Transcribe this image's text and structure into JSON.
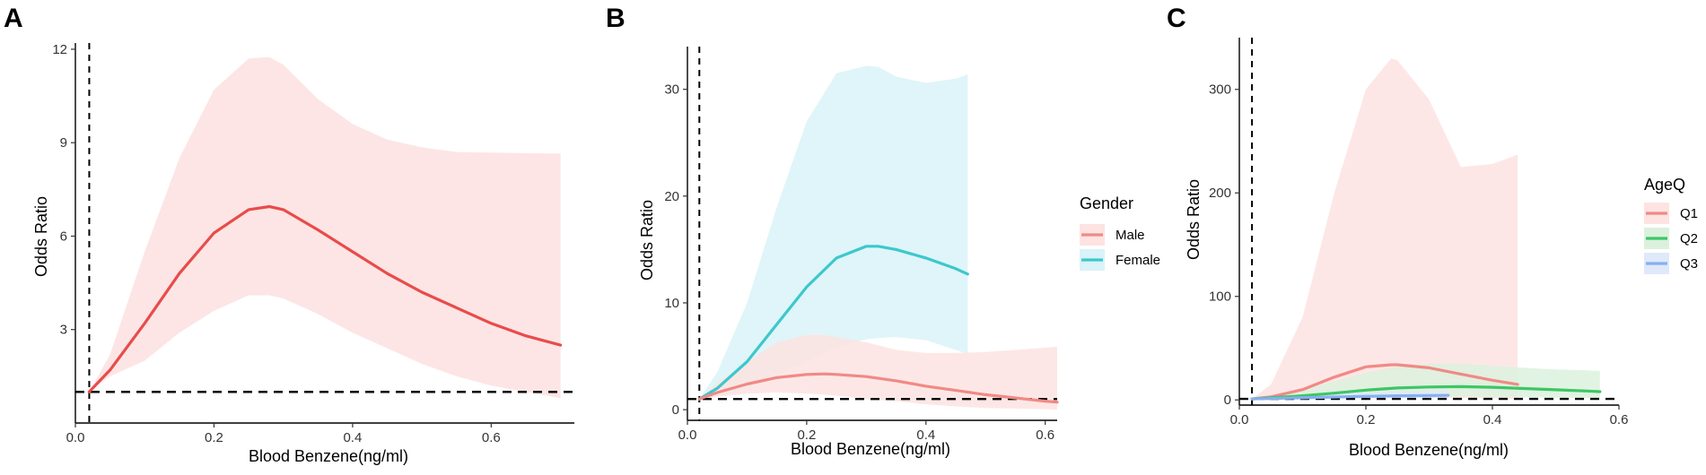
{
  "chart_data": [
    {
      "panel": "A",
      "type": "line",
      "xlabel": "Blood Benzene(ng/ml)",
      "ylabel": "Odds Ratio",
      "xlim": [
        0,
        0.72
      ],
      "ylim": [
        0,
        12.2
      ],
      "xticks": [
        0.0,
        0.2,
        0.4,
        0.6
      ],
      "xtick_labels": [
        "0.0",
        "0.2",
        "0.4",
        "0.6"
      ],
      "yticks": [
        3,
        6,
        9,
        12
      ],
      "ytick_labels": [
        "3",
        "6",
        "9",
        "12"
      ],
      "ref_vline_x": 0.02,
      "ref_hline_y": 1,
      "legend": null,
      "series": [
        {
          "name": "",
          "color": "#e84c4a",
          "fill": "#fde0e0",
          "x": [
            0.02,
            0.05,
            0.1,
            0.15,
            0.2,
            0.25,
            0.28,
            0.3,
            0.35,
            0.4,
            0.45,
            0.5,
            0.55,
            0.6,
            0.65,
            0.7
          ],
          "y": [
            1.0,
            1.7,
            3.2,
            4.8,
            6.1,
            6.85,
            6.95,
            6.85,
            6.2,
            5.5,
            4.8,
            4.2,
            3.7,
            3.2,
            2.8,
            2.5
          ],
          "lower": [
            1.0,
            1.5,
            2.0,
            2.9,
            3.6,
            4.1,
            4.1,
            4.0,
            3.5,
            2.9,
            2.4,
            1.9,
            1.5,
            1.2,
            1.0,
            0.8
          ],
          "upper": [
            1.0,
            2.2,
            5.5,
            8.5,
            10.7,
            11.7,
            11.75,
            11.5,
            10.4,
            9.6,
            9.1,
            8.85,
            8.7,
            8.68,
            8.66,
            8.65
          ]
        }
      ]
    },
    {
      "panel": "B",
      "type": "line",
      "xlabel": "Blood Benzene(ng/ml)",
      "ylabel": "Odds Ratio",
      "xlim": [
        0,
        0.62
      ],
      "ylim": [
        -1,
        34
      ],
      "xticks": [
        0.0,
        0.2,
        0.4,
        0.6
      ],
      "xtick_labels": [
        "0.0",
        "0.2",
        "0.4",
        "0.6"
      ],
      "yticks": [
        0,
        10,
        20,
        30
      ],
      "ytick_labels": [
        "0",
        "10",
        "20",
        "30"
      ],
      "ref_vline_x": 0.02,
      "ref_hline_y": 1,
      "legend": {
        "title": "Gender",
        "labels": [
          "Male",
          "Female"
        ]
      },
      "series": [
        {
          "name": "Female",
          "color": "#3cc8cc",
          "fill": "#d9f3f8",
          "x": [
            0.02,
            0.05,
            0.1,
            0.15,
            0.2,
            0.25,
            0.3,
            0.32,
            0.35,
            0.4,
            0.45,
            0.47
          ],
          "y": [
            1.0,
            2.0,
            4.5,
            8.0,
            11.5,
            14.2,
            15.3,
            15.3,
            15.0,
            14.2,
            13.2,
            12.7
          ],
          "lower": [
            1.0,
            1.2,
            2.0,
            3.2,
            4.5,
            5.8,
            6.6,
            6.7,
            6.8,
            6.5,
            5.6,
            5.2
          ],
          "upper": [
            1.0,
            3.5,
            10.0,
            19.0,
            27.0,
            31.5,
            32.2,
            32.1,
            31.2,
            30.6,
            31.0,
            31.4
          ]
        },
        {
          "name": "Male",
          "color": "#f08a85",
          "fill": "#fde3e2",
          "x": [
            0.02,
            0.05,
            0.1,
            0.15,
            0.2,
            0.23,
            0.25,
            0.3,
            0.35,
            0.4,
            0.45,
            0.5,
            0.55,
            0.6,
            0.62
          ],
          "y": [
            1.0,
            1.6,
            2.4,
            3.0,
            3.3,
            3.35,
            3.3,
            3.1,
            2.7,
            2.2,
            1.8,
            1.4,
            1.1,
            0.8,
            0.7
          ],
          "lower": [
            1.0,
            1.2,
            1.5,
            1.6,
            1.5,
            1.4,
            1.3,
            1.0,
            0.8,
            0.5,
            0.3,
            0.15,
            0.1,
            0.05,
            0.0
          ],
          "upper": [
            1.0,
            2.5,
            4.5,
            6.3,
            7.0,
            7.0,
            6.8,
            6.3,
            5.6,
            5.3,
            5.3,
            5.4,
            5.6,
            5.8,
            5.9
          ]
        }
      ]
    },
    {
      "panel": "C",
      "type": "line",
      "xlabel": "Blood Benzene(ng/ml)",
      "ylabel": "Odds Ratio",
      "xlim": [
        0,
        0.6
      ],
      "ylim": [
        -5,
        350
      ],
      "xticks": [
        0.0,
        0.2,
        0.4,
        0.6
      ],
      "xtick_labels": [
        "0.0",
        "0.2",
        "0.4",
        "0.6"
      ],
      "yticks": [
        0,
        100,
        200,
        300
      ],
      "ytick_labels": [
        "0",
        "100",
        "200",
        "300"
      ],
      "ref_vline_x": 0.02,
      "ref_hline_y": 1,
      "legend": {
        "title": "AgeQ",
        "labels": [
          "Q1",
          "Q2",
          "Q3"
        ]
      },
      "series": [
        {
          "name": "Q1",
          "color": "#f08a85",
          "fill": "#fde3e2",
          "x": [
            0.02,
            0.05,
            0.1,
            0.15,
            0.2,
            0.24,
            0.25,
            0.3,
            0.35,
            0.4,
            0.44
          ],
          "y": [
            1,
            3,
            10,
            22,
            32,
            34,
            34,
            31,
            25,
            19,
            15
          ],
          "lower": [
            1,
            1,
            1.5,
            2,
            2.5,
            2.5,
            2.5,
            2.5,
            2,
            1.5,
            1
          ],
          "upper": [
            1,
            15,
            80,
            200,
            300,
            330,
            328,
            290,
            225,
            228,
            237
          ]
        },
        {
          "name": "Q2",
          "color": "#3dc667",
          "fill": "#dcf1dd",
          "x": [
            0.02,
            0.05,
            0.1,
            0.15,
            0.2,
            0.25,
            0.3,
            0.35,
            0.4,
            0.45,
            0.5,
            0.55,
            0.57
          ],
          "y": [
            1,
            2,
            4,
            6.5,
            9.5,
            11.5,
            12.5,
            12.8,
            12.2,
            11.0,
            9.8,
            8.6,
            8.0
          ],
          "lower": [
            1,
            1,
            1.2,
            1.5,
            2,
            2.5,
            3,
            3,
            2.8,
            2.5,
            2.2,
            2,
            2
          ],
          "upper": [
            1,
            4,
            10,
            18,
            26,
            32,
            35,
            35,
            33,
            31,
            29.5,
            28.5,
            28
          ]
        },
        {
          "name": "Q3",
          "color": "#86aff0",
          "fill": "#dfe9fa",
          "x": [
            0.02,
            0.05,
            0.1,
            0.15,
            0.2,
            0.25,
            0.3,
            0.33
          ],
          "y": [
            1,
            1.3,
            2,
            2.8,
            3.5,
            4.0,
            4.3,
            4.4
          ],
          "lower": [
            1,
            1,
            1.1,
            1.3,
            1.5,
            1.6,
            1.7,
            1.7
          ],
          "upper": [
            1,
            2,
            3.5,
            5.5,
            7,
            8,
            8.5,
            8.7
          ]
        }
      ]
    }
  ]
}
